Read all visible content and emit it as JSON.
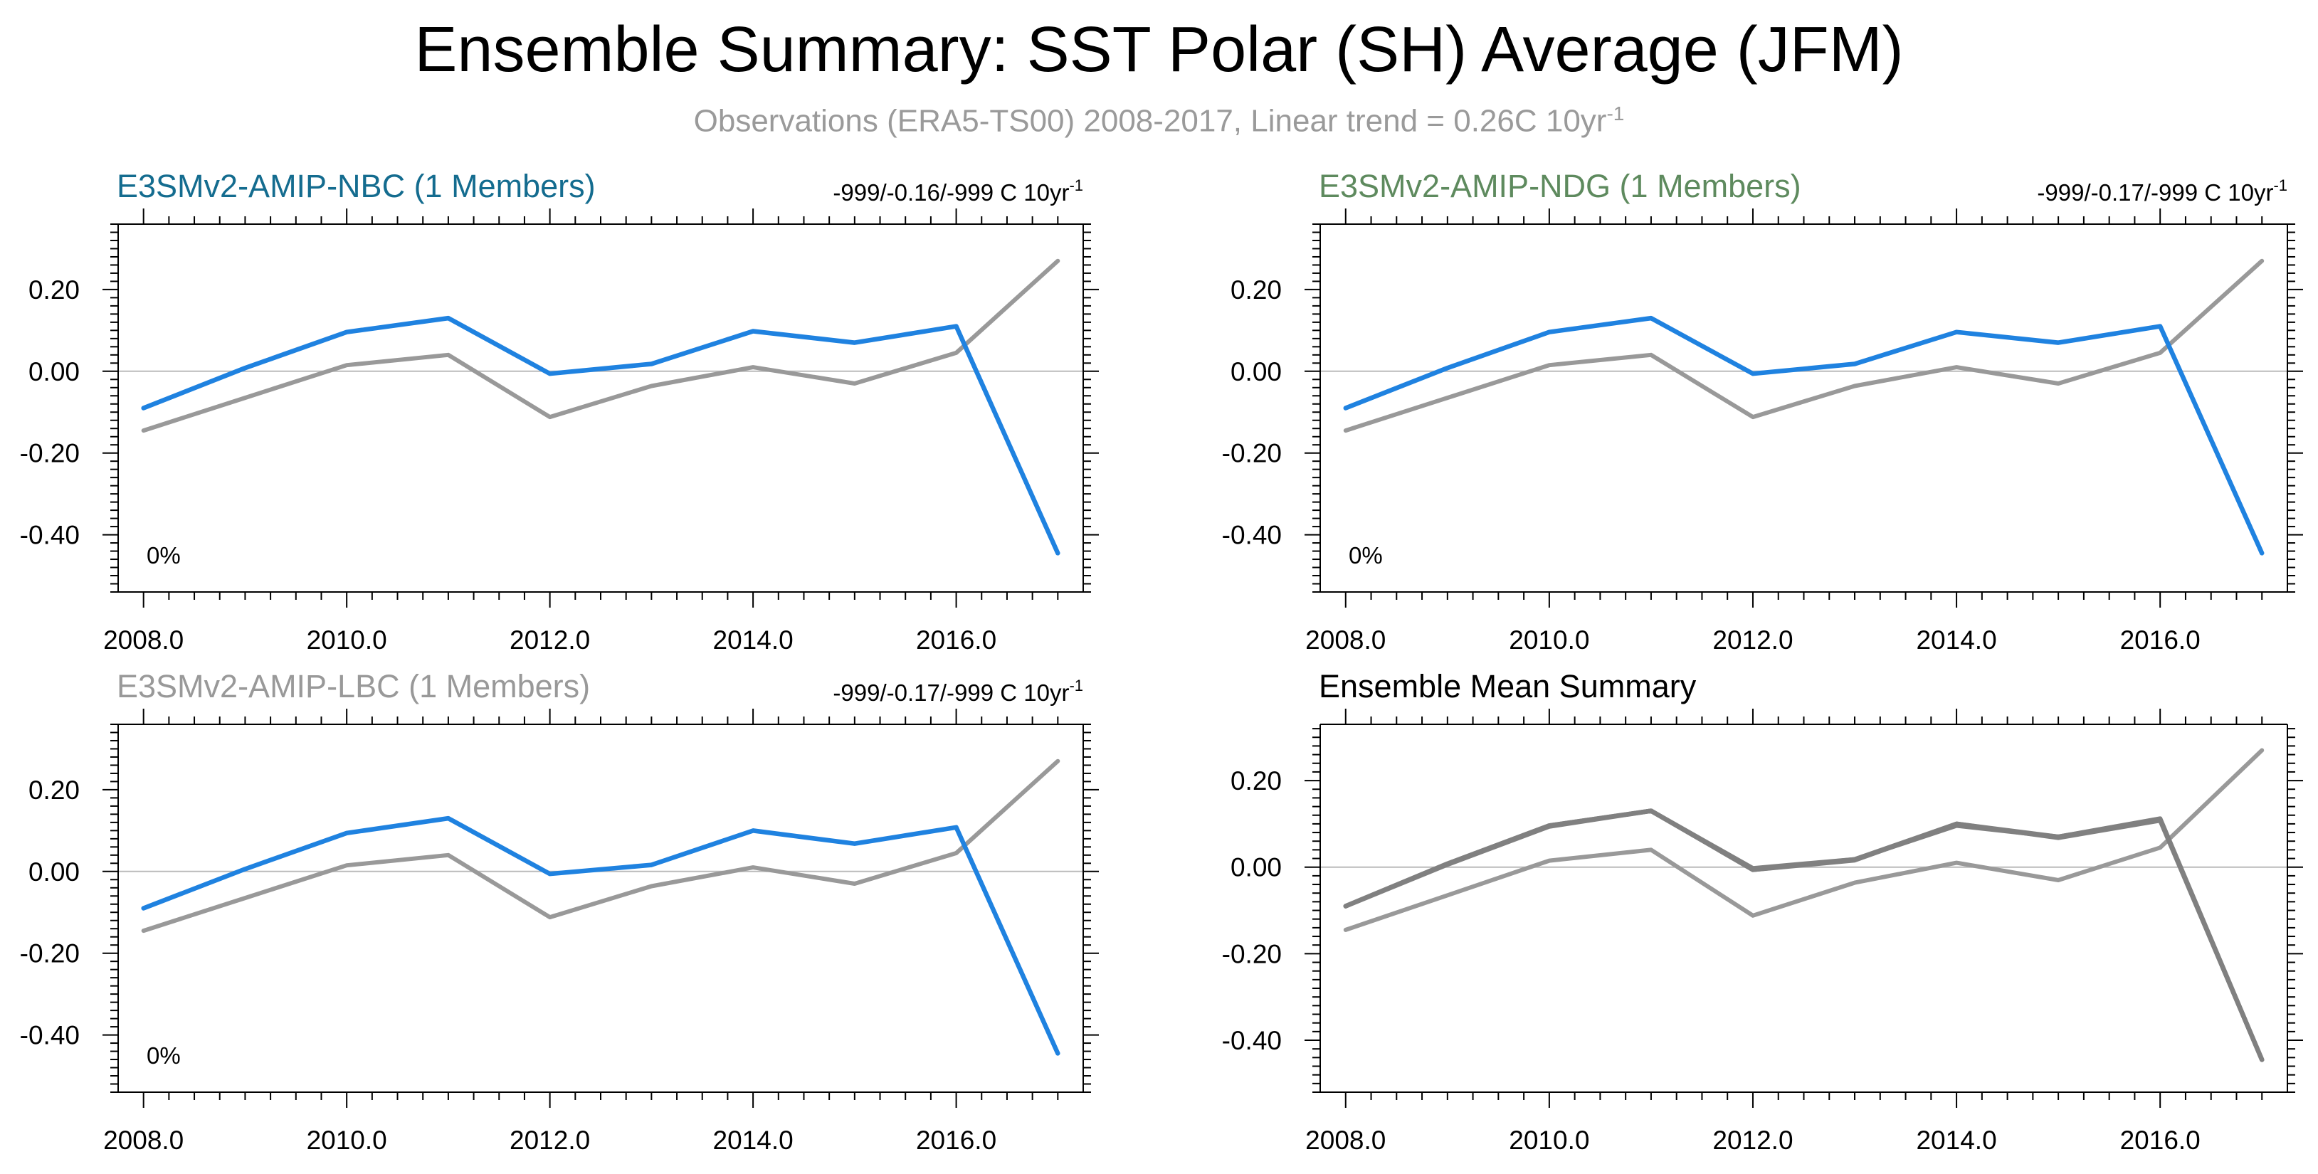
{
  "figure": {
    "title": "Ensemble Summary: SST Polar (SH) Average (JFM)",
    "subtitle_main": "Observations (ERA5-TS00) 2008-2017, Linear trend = 0.26C 10yr",
    "subtitle_sup": "-1"
  },
  "colors": {
    "observations": "#999999",
    "model": "#1f82e0",
    "ensemble_mean": "#808080",
    "zero_line": "#bbbbbb",
    "axis": "#000000"
  },
  "chart_data": [
    {
      "type": "line",
      "title": "E3SMv2-AMIP-NBC (1 Members)",
      "title_color": "#146c8f",
      "trend_text": "-999/-0.16/-999 C 10yr",
      "trend_sup": "-1",
      "corner_label": "0%",
      "x": [
        2008,
        2009,
        2010,
        2011,
        2012,
        2013,
        2014,
        2015,
        2016,
        2017
      ],
      "xticks": [
        2008,
        2010,
        2012,
        2014,
        2016
      ],
      "xtick_labels": [
        "2008.0",
        "2010.0",
        "2012.0",
        "2014.0",
        "2016.0"
      ],
      "yticks": [
        0.2,
        0.0,
        -0.2,
        -0.4
      ],
      "ytick_labels": [
        "0.20",
        "0.00",
        "-0.20",
        "-0.40"
      ],
      "xlim": [
        2007.75,
        2017.25
      ],
      "ylim": [
        -0.54,
        0.36
      ],
      "series": [
        {
          "values": [
            -0.145,
            -0.065,
            0.015,
            0.04,
            -0.112,
            -0.036,
            0.01,
            -0.03,
            0.045,
            0.27
          ],
          "color": "#999999"
        },
        {
          "values": [
            -0.09,
            0.008,
            0.096,
            0.13,
            -0.006,
            0.018,
            0.098,
            0.07,
            0.11,
            -0.445
          ],
          "color": "#1f82e0"
        }
      ]
    },
    {
      "type": "line",
      "title": "E3SMv2-AMIP-NDG (1 Members)",
      "title_color": "#5e8a5e",
      "trend_text": "-999/-0.17/-999 C 10yr",
      "trend_sup": "-1",
      "corner_label": "0%",
      "x": [
        2008,
        2009,
        2010,
        2011,
        2012,
        2013,
        2014,
        2015,
        2016,
        2017
      ],
      "xticks": [
        2008,
        2010,
        2012,
        2014,
        2016
      ],
      "xtick_labels": [
        "2008.0",
        "2010.0",
        "2012.0",
        "2014.0",
        "2016.0"
      ],
      "yticks": [
        0.2,
        0.0,
        -0.2,
        -0.4
      ],
      "ytick_labels": [
        "0.20",
        "0.00",
        "-0.20",
        "-0.40"
      ],
      "xlim": [
        2007.75,
        2017.25
      ],
      "ylim": [
        -0.54,
        0.36
      ],
      "series": [
        {
          "values": [
            -0.145,
            -0.065,
            0.015,
            0.04,
            -0.112,
            -0.036,
            0.01,
            -0.03,
            0.045,
            0.27
          ],
          "color": "#999999"
        },
        {
          "values": [
            -0.09,
            0.008,
            0.096,
            0.13,
            -0.006,
            0.018,
            0.096,
            0.07,
            0.11,
            -0.445
          ],
          "color": "#1f82e0"
        }
      ]
    },
    {
      "type": "line",
      "title": "E3SMv2-AMIP-LBC (1 Members)",
      "title_color": "#999999",
      "trend_text": "-999/-0.17/-999 C 10yr",
      "trend_sup": "-1",
      "corner_label": "0%",
      "x": [
        2008,
        2009,
        2010,
        2011,
        2012,
        2013,
        2014,
        2015,
        2016,
        2017
      ],
      "xticks": [
        2008,
        2010,
        2012,
        2014,
        2016
      ],
      "xtick_labels": [
        "2008.0",
        "2010.0",
        "2012.0",
        "2014.0",
        "2016.0"
      ],
      "yticks": [
        0.2,
        0.0,
        -0.2,
        -0.4
      ],
      "ytick_labels": [
        "0.20",
        "0.00",
        "-0.20",
        "-0.40"
      ],
      "xlim": [
        2007.75,
        2017.25
      ],
      "ylim": [
        -0.54,
        0.36
      ],
      "series": [
        {
          "values": [
            -0.145,
            -0.065,
            0.015,
            0.04,
            -0.112,
            -0.036,
            0.01,
            -0.03,
            0.045,
            0.27
          ],
          "color": "#999999"
        },
        {
          "values": [
            -0.09,
            0.006,
            0.094,
            0.13,
            -0.006,
            0.016,
            0.1,
            0.068,
            0.108,
            -0.445
          ],
          "color": "#1f82e0"
        }
      ]
    },
    {
      "type": "line",
      "title": "Ensemble Mean Summary",
      "title_color": "#000000",
      "x": [
        2008,
        2009,
        2010,
        2011,
        2012,
        2013,
        2014,
        2015,
        2016,
        2017
      ],
      "xticks": [
        2008,
        2010,
        2012,
        2014,
        2016
      ],
      "xtick_labels": [
        "2008.0",
        "2010.0",
        "2012.0",
        "2014.0",
        "2016.0"
      ],
      "yticks": [
        0.2,
        0.0,
        -0.2,
        -0.4
      ],
      "ytick_labels": [
        "0.20",
        "0.00",
        "-0.20",
        "-0.40"
      ],
      "xlim": [
        2007.75,
        2017.25
      ],
      "ylim": [
        -0.52,
        0.33
      ],
      "series": [
        {
          "values": [
            -0.145,
            -0.065,
            0.015,
            0.04,
            -0.112,
            -0.036,
            0.01,
            -0.03,
            0.045,
            0.27
          ],
          "color": "#999999"
        },
        {
          "values": [
            -0.09,
            0.008,
            0.096,
            0.13,
            -0.006,
            0.018,
            0.1,
            0.07,
            0.11,
            -0.445
          ],
          "color": "#808080"
        },
        {
          "values": [
            -0.09,
            0.008,
            0.096,
            0.13,
            -0.003,
            0.018,
            0.096,
            0.07,
            0.112,
            -0.445
          ],
          "color": "#808080"
        },
        {
          "values": [
            -0.09,
            0.006,
            0.094,
            0.13,
            -0.006,
            0.016,
            0.1,
            0.068,
            0.108,
            -0.445
          ],
          "color": "#808080"
        }
      ]
    }
  ]
}
